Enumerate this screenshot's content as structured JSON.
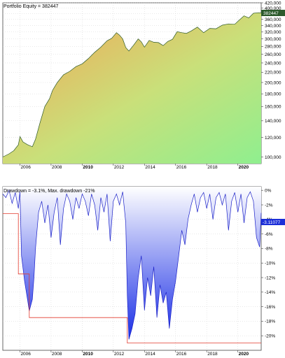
{
  "chart_data": [
    {
      "type": "area",
      "title": "Portfolio Equity = 382447",
      "last_value_label": "382447",
      "ylim": [
        94000,
        420000
      ],
      "log_scale": true,
      "y_ticks": [
        {
          "value": 100000,
          "label": "100,000"
        },
        {
          "value": 120000,
          "label": "120,000"
        },
        {
          "value": 140000,
          "label": "140,000"
        },
        {
          "value": 160000,
          "label": "160,000"
        },
        {
          "value": 180000,
          "label": "180,000"
        },
        {
          "value": 200000,
          "label": "200,000"
        },
        {
          "value": 220000,
          "label": "220,000"
        },
        {
          "value": 240000,
          "label": "240,000"
        },
        {
          "value": 260000,
          "label": "260,000"
        },
        {
          "value": 280000,
          "label": "280,000"
        },
        {
          "value": 300000,
          "label": "300,000"
        },
        {
          "value": 320000,
          "label": "320,000"
        },
        {
          "value": 340000,
          "label": "340,000"
        },
        {
          "value": 360000,
          "label": "360,000"
        },
        {
          "value": 380000,
          "label": "380,000"
        },
        {
          "value": 400000,
          "label": "400,000"
        },
        {
          "value": 420000,
          "label": "420,000"
        }
      ],
      "x_ticks": [
        {
          "value": 2006,
          "label": "2006",
          "bold": false
        },
        {
          "value": 2008,
          "label": "2008",
          "bold": false
        },
        {
          "value": 2010,
          "label": "2010",
          "bold": true
        },
        {
          "value": 2012,
          "label": "2012",
          "bold": false
        },
        {
          "value": 2014,
          "label": "2014",
          "bold": false
        },
        {
          "value": 2016,
          "label": "2016",
          "bold": false
        },
        {
          "value": 2018,
          "label": "2018",
          "bold": false
        },
        {
          "value": 2020,
          "label": "2020",
          "bold": true
        }
      ],
      "xlim": [
        2004.9,
        2021.5
      ],
      "series": [
        {
          "x": [
            2004.9,
            2005.3,
            2005.6,
            2005.9,
            2006.0,
            2006.2,
            2006.5,
            2006.8,
            2007.0,
            2007.3,
            2007.6,
            2007.9,
            2008.1,
            2008.4,
            2008.8,
            2009.2,
            2009.6,
            2010.0,
            2010.4,
            2010.8,
            2011.2,
            2011.6,
            2011.9,
            2012.2,
            2012.4,
            2012.6,
            2012.8,
            2013.0,
            2013.3,
            2013.6,
            2013.8,
            2014.0,
            2014.3,
            2014.6,
            2014.9,
            2015.2,
            2015.5,
            2015.8,
            2016.1,
            2016.4,
            2016.7,
            2017.0,
            2017.4,
            2017.8,
            2018.2,
            2018.6,
            2019.0,
            2019.4,
            2019.8,
            2020.1,
            2020.4,
            2020.7,
            2021.0,
            2021.3,
            2021.5
          ],
          "values": [
            100000,
            103000,
            106000,
            112000,
            121000,
            115000,
            112000,
            110000,
            118000,
            138000,
            160000,
            172000,
            186000,
            200000,
            215000,
            222000,
            232000,
            238000,
            250000,
            265000,
            278000,
            295000,
            302000,
            318000,
            311000,
            300000,
            277000,
            268000,
            283000,
            300000,
            292000,
            278000,
            296000,
            291000,
            290000,
            282000,
            293000,
            299000,
            321000,
            318000,
            316000,
            323000,
            335000,
            318000,
            331000,
            330000,
            341000,
            345000,
            344000,
            358000,
            372000,
            365000,
            381000,
            383000,
            382447
          ]
        }
      ]
    },
    {
      "type": "area",
      "title": "Drawdown = -3.1%, Max. drawdown -21%",
      "last_value_label": "-3.11077",
      "ylim": [
        -22,
        0.5
      ],
      "y_ticks": [
        {
          "value": 0,
          "label": "0%"
        },
        {
          "value": -2,
          "label": "-2%"
        },
        {
          "value": -4,
          "label": "-4%"
        },
        {
          "value": -6,
          "label": "-6%"
        },
        {
          "value": -8,
          "label": "-8%"
        },
        {
          "value": -10,
          "label": "-10%"
        },
        {
          "value": -12,
          "label": "-12%"
        },
        {
          "value": -14,
          "label": "-14%"
        },
        {
          "value": -16,
          "label": "-16%"
        },
        {
          "value": -18,
          "label": "-18%"
        },
        {
          "value": -20,
          "label": "-20%"
        }
      ],
      "x_ticks": [
        {
          "value": 2006,
          "label": "2006",
          "bold": false
        },
        {
          "value": 2008,
          "label": "2008",
          "bold": false
        },
        {
          "value": 2010,
          "label": "2010",
          "bold": true
        },
        {
          "value": 2012,
          "label": "2012",
          "bold": false
        },
        {
          "value": 2014,
          "label": "2014",
          "bold": false
        },
        {
          "value": 2016,
          "label": "2016",
          "bold": false
        },
        {
          "value": 2018,
          "label": "2018",
          "bold": false
        },
        {
          "value": 2020,
          "label": "2020",
          "bold": true
        }
      ],
      "xlim": [
        2004.9,
        2021.5
      ],
      "series": [
        {
          "x": [
            2004.9,
            2005.1,
            2005.3,
            2005.5,
            2005.7,
            2005.9,
            2006.0,
            2006.1,
            2006.3,
            2006.5,
            2006.6,
            2006.8,
            2006.9,
            2007.0,
            2007.2,
            2007.4,
            2007.6,
            2007.8,
            2008.0,
            2008.2,
            2008.4,
            2008.6,
            2008.8,
            2009.0,
            2009.2,
            2009.4,
            2009.6,
            2009.8,
            2010.0,
            2010.2,
            2010.4,
            2010.6,
            2010.8,
            2011.0,
            2011.2,
            2011.4,
            2011.6,
            2011.8,
            2012.0,
            2012.2,
            2012.4,
            2012.6,
            2012.8,
            2012.9,
            2013.0,
            2013.2,
            2013.4,
            2013.6,
            2013.8,
            2014.0,
            2014.2,
            2014.4,
            2014.6,
            2014.8,
            2015.0,
            2015.2,
            2015.4,
            2015.6,
            2015.8,
            2016.0,
            2016.2,
            2016.4,
            2016.6,
            2016.8,
            2017.0,
            2017.2,
            2017.4,
            2017.6,
            2017.8,
            2018.0,
            2018.2,
            2018.4,
            2018.6,
            2018.8,
            2019.0,
            2019.2,
            2019.4,
            2019.6,
            2019.8,
            2020.0,
            2020.2,
            2020.4,
            2020.6,
            2020.8,
            2021.0,
            2021.2,
            2021.4,
            2021.5
          ],
          "values": [
            -0.5,
            -1.0,
            0,
            -1.8,
            -0.3,
            -2.5,
            -0.2,
            -9.0,
            -12.5,
            -15.2,
            -16.6,
            -15.0,
            -12.0,
            -8.0,
            -3.0,
            -1.5,
            -4.5,
            -2.0,
            -6.5,
            -3.0,
            -1.0,
            -7.5,
            -2.5,
            -0.5,
            -1.5,
            -4.0,
            -1.0,
            -2.5,
            -0.5,
            -1.5,
            -3.5,
            -0.5,
            -2.0,
            -5.5,
            -1.0,
            -3.0,
            -0.5,
            -7.0,
            -1.5,
            -0.5,
            -2.0,
            -0.2,
            -4.5,
            -14.5,
            -20.5,
            -19.0,
            -17.0,
            -12.0,
            -9.0,
            -16.5,
            -12.0,
            -14.5,
            -10.5,
            -17.5,
            -13.0,
            -15.5,
            -14.0,
            -19.0,
            -15.0,
            -12.5,
            -9.0,
            -5.5,
            -7.5,
            -4.0,
            -2.0,
            -0.5,
            -3.0,
            -1.0,
            -0.3,
            -2.5,
            -0.5,
            -4.0,
            -1.0,
            -0.3,
            -2.0,
            -0.5,
            -5.5,
            -1.5,
            -0.3,
            -3.0,
            -0.5,
            -4.5,
            -1.0,
            -0.2,
            -1.5,
            -6.5,
            -7.8,
            -3.11
          ]
        }
      ],
      "max_drawdown_line": {
        "x": [
          2004.9,
          2005.9,
          2005.9,
          2006.6,
          2006.6,
          2012.9,
          2012.9,
          2021.5
        ],
        "values": [
          -3.2,
          -3.2,
          -11.5,
          -11.5,
          -17.5,
          -17.5,
          -21.0,
          -21.0
        ]
      }
    }
  ]
}
